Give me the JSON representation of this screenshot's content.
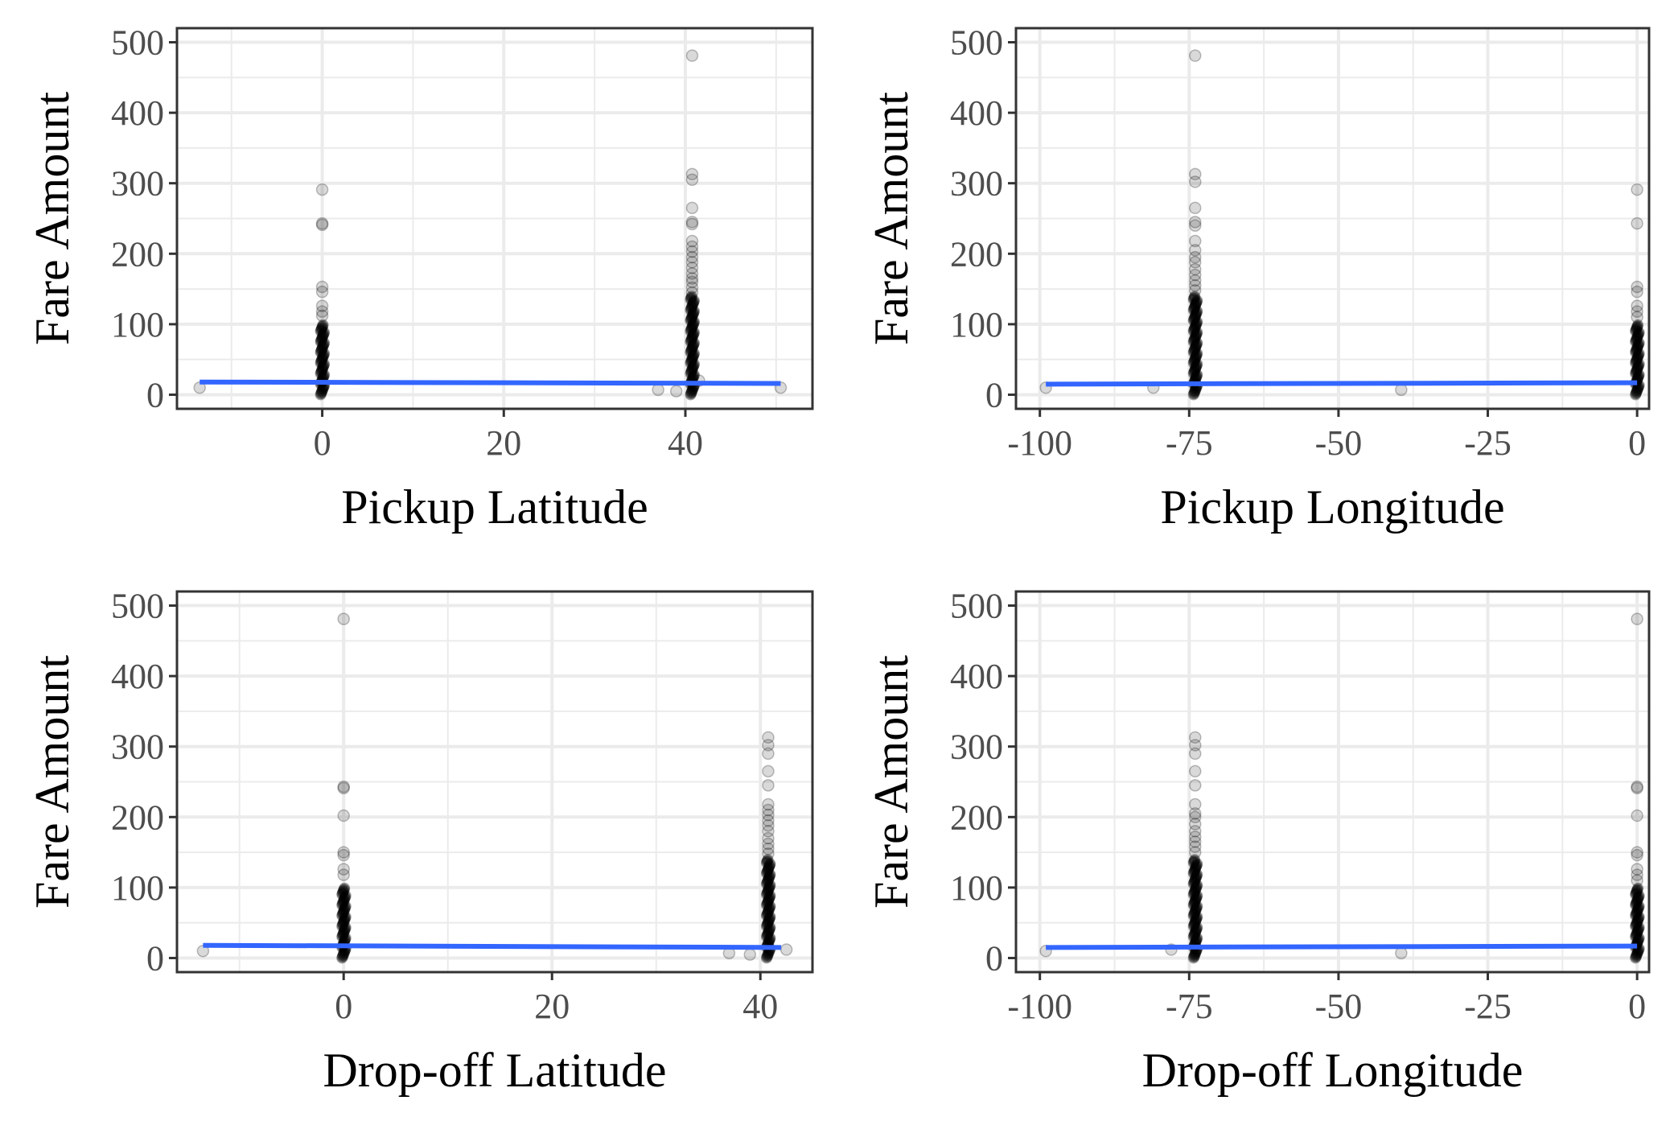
{
  "style": {
    "point_color": "#000000",
    "point_alpha": 0.15,
    "line_color": "#3366FF",
    "grid_color": "#ebebeb",
    "panel_border": "#333333"
  },
  "chart_data": [
    {
      "type": "scatter",
      "xlabel": "Pickup Latitude",
      "ylabel": "Fare Amount",
      "xlim": [
        -16,
        54
      ],
      "ylim": [
        -20,
        520
      ],
      "xticks": [
        0,
        20,
        40
      ],
      "xtick_labels": [
        "0",
        "20",
        "40"
      ],
      "yticks": [
        0,
        100,
        200,
        300,
        400,
        500
      ],
      "ytick_labels": [
        "0",
        "100",
        "200",
        "300",
        "400",
        "500"
      ],
      "grid": true,
      "point_clusters": [
        {
          "x": 0,
          "max": 100
        },
        {
          "x": 40.75,
          "max": 140
        }
      ],
      "points": [
        [
          -13.5,
          10
        ],
        [
          0,
          291
        ],
        [
          0,
          243
        ],
        [
          0,
          241
        ],
        [
          0,
          153
        ],
        [
          0,
          146
        ],
        [
          0,
          126
        ],
        [
          0,
          118
        ],
        [
          0,
          112
        ],
        [
          40.75,
          481
        ],
        [
          40.75,
          313
        ],
        [
          40.75,
          305
        ],
        [
          40.75,
          265
        ],
        [
          40.75,
          245
        ],
        [
          40.75,
          242
        ],
        [
          40.75,
          218
        ],
        [
          40.75,
          210
        ],
        [
          40.75,
          203
        ],
        [
          40.75,
          195
        ],
        [
          40.75,
          188
        ],
        [
          40.75,
          180
        ],
        [
          40.75,
          172
        ],
        [
          40.75,
          165
        ],
        [
          40.75,
          160
        ],
        [
          40.75,
          152
        ],
        [
          40.75,
          145
        ],
        [
          37,
          7
        ],
        [
          39,
          5
        ],
        [
          41.5,
          20
        ],
        [
          50.5,
          10
        ]
      ],
      "fit": [
        [
          -13.5,
          18
        ],
        [
          50.5,
          16
        ]
      ]
    },
    {
      "type": "scatter",
      "xlabel": "Pickup Longitude",
      "ylabel": "Fare Amount",
      "xlim": [
        -104,
        2
      ],
      "ylim": [
        -20,
        520
      ],
      "xticks": [
        -100,
        -75,
        -50,
        -25,
        0
      ],
      "xtick_labels": [
        "-100",
        "-75",
        "-50",
        "-25",
        "0"
      ],
      "yticks": [
        0,
        100,
        200,
        300,
        400,
        500
      ],
      "ytick_labels": [
        "0",
        "100",
        "200",
        "300",
        "400",
        "500"
      ],
      "grid": true,
      "point_clusters": [
        {
          "x": -74,
          "max": 140
        },
        {
          "x": 0,
          "max": 100
        }
      ],
      "points": [
        [
          -99,
          10
        ],
        [
          -81,
          10
        ],
        [
          -39.5,
          7
        ],
        [
          -74,
          481
        ],
        [
          -74,
          313
        ],
        [
          -74,
          302
        ],
        [
          -74,
          265
        ],
        [
          -74,
          245
        ],
        [
          -74,
          240
        ],
        [
          -74,
          218
        ],
        [
          -74,
          205
        ],
        [
          -74,
          195
        ],
        [
          -74,
          188
        ],
        [
          -74,
          178
        ],
        [
          -74,
          170
        ],
        [
          -74,
          162
        ],
        [
          -74,
          155
        ],
        [
          -74,
          148
        ],
        [
          0,
          291
        ],
        [
          0,
          243
        ],
        [
          0,
          153
        ],
        [
          0,
          146
        ],
        [
          0,
          126
        ],
        [
          0,
          118
        ],
        [
          0,
          110
        ]
      ],
      "fit": [
        [
          -99,
          15
        ],
        [
          0,
          17
        ]
      ]
    },
    {
      "type": "scatter",
      "xlabel": "Drop-off Latitude",
      "ylabel": "Fare Amount",
      "xlim": [
        -16,
        45
      ],
      "ylim": [
        -20,
        520
      ],
      "xticks": [
        0,
        20,
        40
      ],
      "xtick_labels": [
        "0",
        "20",
        "40"
      ],
      "yticks": [
        0,
        100,
        200,
        300,
        400,
        500
      ],
      "ytick_labels": [
        "0",
        "100",
        "200",
        "300",
        "400",
        "500"
      ],
      "grid": true,
      "point_clusters": [
        {
          "x": 0,
          "max": 100
        },
        {
          "x": 40.75,
          "max": 140
        }
      ],
      "points": [
        [
          -13.5,
          10
        ],
        [
          0,
          481
        ],
        [
          0,
          243
        ],
        [
          0,
          241
        ],
        [
          0,
          202
        ],
        [
          0,
          150
        ],
        [
          0,
          146
        ],
        [
          0,
          126
        ],
        [
          0,
          118
        ],
        [
          40.75,
          313
        ],
        [
          40.75,
          302
        ],
        [
          40.75,
          290
        ],
        [
          40.75,
          265
        ],
        [
          40.75,
          245
        ],
        [
          40.75,
          218
        ],
        [
          40.75,
          210
        ],
        [
          40.75,
          203
        ],
        [
          40.75,
          195
        ],
        [
          40.75,
          188
        ],
        [
          40.75,
          180
        ],
        [
          40.75,
          170
        ],
        [
          40.75,
          162
        ],
        [
          40.75,
          155
        ],
        [
          40.75,
          148
        ],
        [
          37,
          7
        ],
        [
          39,
          5
        ],
        [
          42.5,
          12
        ]
      ],
      "fit": [
        [
          -13.5,
          18
        ],
        [
          42,
          15
        ]
      ]
    },
    {
      "type": "scatter",
      "xlabel": "Drop-off Longitude",
      "ylabel": "Fare Amount",
      "xlim": [
        -104,
        2
      ],
      "ylim": [
        -20,
        520
      ],
      "xticks": [
        -100,
        -75,
        -50,
        -25,
        0
      ],
      "xtick_labels": [
        "-100",
        "-75",
        "-50",
        "-25",
        "0"
      ],
      "yticks": [
        0,
        100,
        200,
        300,
        400,
        500
      ],
      "ytick_labels": [
        "0",
        "100",
        "200",
        "300",
        "400",
        "500"
      ],
      "grid": true,
      "point_clusters": [
        {
          "x": -74,
          "max": 140
        },
        {
          "x": 0,
          "max": 100
        }
      ],
      "points": [
        [
          -99,
          10
        ],
        [
          -78,
          12
        ],
        [
          -39.5,
          7
        ],
        [
          -74,
          313
        ],
        [
          -74,
          302
        ],
        [
          -74,
          290
        ],
        [
          -74,
          265
        ],
        [
          -74,
          245
        ],
        [
          -74,
          218
        ],
        [
          -74,
          205
        ],
        [
          -74,
          200
        ],
        [
          -74,
          190
        ],
        [
          -74,
          180
        ],
        [
          -74,
          172
        ],
        [
          -74,
          165
        ],
        [
          -74,
          158
        ],
        [
          -74,
          150
        ],
        [
          0,
          481
        ],
        [
          0,
          243
        ],
        [
          0,
          241
        ],
        [
          0,
          202
        ],
        [
          0,
          150
        ],
        [
          0,
          146
        ],
        [
          0,
          126
        ],
        [
          0,
          118
        ],
        [
          0,
          110
        ]
      ],
      "fit": [
        [
          -99,
          15
        ],
        [
          0,
          17
        ]
      ]
    }
  ]
}
